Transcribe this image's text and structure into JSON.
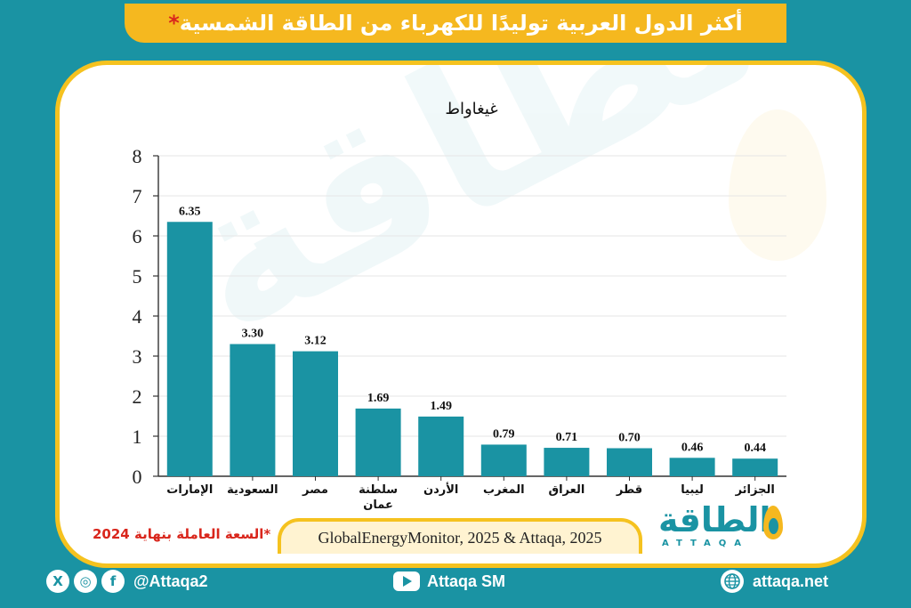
{
  "header": {
    "title": "أكثر الدول العربية توليدًا للكهرباء من الطاقة الشمسية",
    "title_star": "*"
  },
  "chart_data": {
    "type": "bar",
    "title": "",
    "ylabel": "غيغاواط",
    "xlabel": "",
    "ylim": [
      0,
      8
    ],
    "yticks": [
      0,
      1,
      2,
      3,
      4,
      5,
      6,
      7,
      8
    ],
    "grid": true,
    "categories": [
      "الإمارات",
      "السعودية",
      "مصر",
      "سلطنة عمان",
      "الأردن",
      "المغرب",
      "العراق",
      "قطر",
      "ليبيا",
      "الجزائر"
    ],
    "category_lines": [
      [
        "الإمارات"
      ],
      [
        "السعودية"
      ],
      [
        "مصر"
      ],
      [
        "سلطنة",
        "عمان"
      ],
      [
        "الأردن"
      ],
      [
        "المغرب"
      ],
      [
        "العراق"
      ],
      [
        "قطر"
      ],
      [
        "ليبيا"
      ],
      [
        "الجزائر"
      ]
    ],
    "values": [
      6.35,
      3.3,
      3.12,
      1.69,
      1.49,
      0.79,
      0.71,
      0.7,
      0.46,
      0.44
    ],
    "value_labels": [
      "6.35",
      "3.30",
      "3.12",
      "1.69",
      "1.49",
      "0.79",
      "0.71",
      "0.70",
      "0.46",
      "0.44"
    ],
    "bar_color": "#1a93a3"
  },
  "footnote": {
    "text": "*السعة العاملة بنهاية",
    "year": "2024"
  },
  "source": "GlobalEnergyMonitor, 2025 & Attaqa, 2025",
  "brand": {
    "arabic": "الطاقة",
    "latin": "ATTAQA"
  },
  "social": {
    "x_icon": "X",
    "instagram_icon": "◎",
    "facebook_icon": "f",
    "handle": "@Attaqa2",
    "youtube": "Attaqa SM",
    "website": "attaqa.net"
  },
  "colors": {
    "background": "#1a93a3",
    "accent": "#f5b81f",
    "footnote": "#d9261c"
  },
  "icons": [
    "x-icon",
    "instagram-icon",
    "facebook-icon",
    "youtube-icon",
    "globe-icon"
  ]
}
